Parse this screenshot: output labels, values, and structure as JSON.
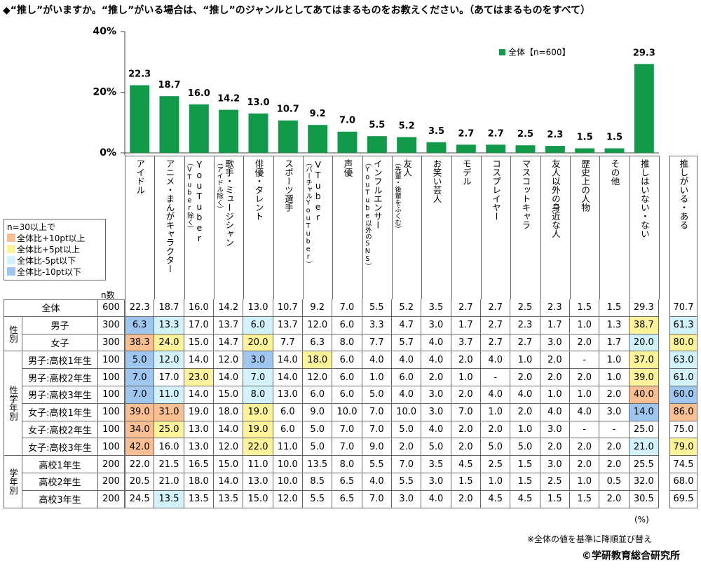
{
  "title": "◆“推し”がいますか。“推し”がいる場合は、“推し”のジャンルとしてあてはまるものをお教えください。（あてはまるものをすべて）",
  "chart_data": {
    "type": "bar",
    "categories": [
      "アイドル",
      "アニメ・まんがキャラクター",
      "YouTuber",
      "歌手・ミュージシャン",
      "俳優・タレント",
      "スポーツ選手",
      "VTuber",
      "声優",
      "インフルエンサー",
      "友人",
      "お笑い芸人",
      "モデル",
      "コスプレイヤー",
      "マスコットキャラ",
      "友人以外の身近な人",
      "歴史上の人物",
      "その他",
      "推しはいない・ない"
    ],
    "category_notes": [
      null,
      null,
      "（VTuber除く）",
      "（アイドル除く）",
      null,
      null,
      "（バーチャルYouTuber）",
      null,
      "（YouTube以外のSNS）",
      "（先輩・後輩をふくむ）",
      null,
      null,
      null,
      null,
      null,
      null,
      null,
      null
    ],
    "values": [
      22.3,
      18.7,
      16.0,
      14.2,
      13.0,
      10.7,
      9.2,
      7.0,
      5.5,
      5.2,
      3.5,
      2.7,
      2.7,
      2.5,
      2.3,
      1.5,
      1.5,
      29.3
    ],
    "value_labels": [
      "22.3",
      "18.7",
      "16.0",
      "14.2",
      "13.0",
      "10.7",
      "9.2",
      "7.0",
      "5.5",
      "5.2",
      "3.5",
      "2.7",
      "2.7",
      "2.5",
      "2.3",
      "1.5",
      "1.5",
      "29.3"
    ],
    "color": "#13994a",
    "series_name": "全体【n=600】",
    "legend_position": "top-right",
    "ylim": [
      0,
      40
    ],
    "yticks": [
      {
        "value": 0,
        "label": "0%"
      },
      {
        "value": 20,
        "label": "20%"
      },
      {
        "value": 40,
        "label": "40%"
      }
    ]
  },
  "shading_legend": {
    "title": "n=30以上で",
    "items": [
      {
        "label": "全体比+10pt以上",
        "color": "#f8bf94"
      },
      {
        "label": "全体比+5pt以上",
        "color": "#fdf39a"
      },
      {
        "label": "全体比-5pt以下",
        "color": "#d2f3fb"
      },
      {
        "label": "全体比-10pt以下",
        "color": "#9fc6ee"
      }
    ]
  },
  "table": {
    "n_header": "n数",
    "extra_column": "推しがいる・ある",
    "total": {
      "label": "全体",
      "n": "600",
      "cells": [
        "22.3",
        "18.7",
        "16.0",
        "14.2",
        "13.0",
        "10.7",
        "9.2",
        "7.0",
        "5.5",
        "5.2",
        "3.5",
        "2.7",
        "2.7",
        "2.5",
        "2.3",
        "1.5",
        "1.5",
        "29.3",
        "70.7"
      ]
    },
    "groups": [
      {
        "label": "性別",
        "rows": [
          {
            "label": "男子",
            "n": "300",
            "cells": [
              "6.3",
              "13.3",
              "17.0",
              "13.7",
              "6.0",
              "13.7",
              "12.0",
              "6.0",
              "3.3",
              "4.7",
              "3.0",
              "1.7",
              "2.7",
              "2.3",
              "1.7",
              "1.0",
              "1.3",
              "38.7",
              "61.3"
            ],
            "highlight": [
              [
                0,
                3
              ],
              [
                1,
                2
              ],
              [
                4,
                2
              ],
              [
                17,
                1
              ],
              [
                18,
                2
              ]
            ]
          },
          {
            "label": "女子",
            "n": "300",
            "cells": [
              "38.3",
              "24.0",
              "15.0",
              "14.7",
              "20.0",
              "7.7",
              "6.3",
              "8.0",
              "7.7",
              "5.7",
              "4.0",
              "3.7",
              "2.7",
              "2.7",
              "3.0",
              "2.0",
              "1.7",
              "20.0",
              "80.0"
            ],
            "highlight": [
              [
                0,
                0
              ],
              [
                1,
                1
              ],
              [
                4,
                1
              ],
              [
                17,
                2
              ],
              [
                18,
                1
              ]
            ]
          }
        ]
      },
      {
        "label": "性学年別",
        "rows": [
          {
            "label": "男子:高校1年生",
            "n": "100",
            "cells": [
              "5.0",
              "12.0",
              "14.0",
              "12.0",
              "3.0",
              "14.0",
              "18.0",
              "6.0",
              "4.0",
              "4.0",
              "4.0",
              "2.0",
              "4.0",
              "1.0",
              "2.0",
              "-",
              "1.0",
              "37.0",
              "63.0"
            ],
            "highlight": [
              [
                0,
                3
              ],
              [
                1,
                2
              ],
              [
                4,
                3
              ],
              [
                6,
                1
              ],
              [
                17,
                1
              ],
              [
                18,
                2
              ]
            ]
          },
          {
            "label": "男子:高校2年生",
            "n": "100",
            "cells": [
              "7.0",
              "17.0",
              "23.0",
              "14.0",
              "7.0",
              "14.0",
              "12.0",
              "6.0",
              "1.0",
              "6.0",
              "2.0",
              "1.0",
              "-",
              "2.0",
              "2.0",
              "2.0",
              "1.0",
              "39.0",
              "61.0"
            ],
            "highlight": [
              [
                0,
                3
              ],
              [
                2,
                1
              ],
              [
                4,
                2
              ],
              [
                17,
                1
              ],
              [
                18,
                2
              ]
            ]
          },
          {
            "label": "男子:高校3年生",
            "n": "100",
            "cells": [
              "7.0",
              "11.0",
              "14.0",
              "15.0",
              "8.0",
              "13.0",
              "6.0",
              "6.0",
              "5.0",
              "4.0",
              "3.0",
              "2.0",
              "4.0",
              "4.0",
              "1.0",
              "1.0",
              "2.0",
              "40.0",
              "60.0"
            ],
            "highlight": [
              [
                0,
                3
              ],
              [
                1,
                2
              ],
              [
                4,
                2
              ],
              [
                17,
                0
              ],
              [
                18,
                3
              ]
            ]
          },
          {
            "label": "女子:高校1年生",
            "n": "100",
            "cells": [
              "39.0",
              "31.0",
              "19.0",
              "18.0",
              "19.0",
              "6.0",
              "9.0",
              "10.0",
              "7.0",
              "10.0",
              "3.0",
              "7.0",
              "1.0",
              "2.0",
              "4.0",
              "4.0",
              "3.0",
              "14.0",
              "86.0"
            ],
            "highlight": [
              [
                0,
                0
              ],
              [
                1,
                0
              ],
              [
                4,
                1
              ],
              [
                17,
                3
              ],
              [
                18,
                0
              ]
            ]
          },
          {
            "label": "女子:高校2年生",
            "n": "100",
            "cells": [
              "34.0",
              "25.0",
              "13.0",
              "14.0",
              "19.0",
              "6.0",
              "5.0",
              "7.0",
              "7.0",
              "5.0",
              "4.0",
              "2.0",
              "2.0",
              "1.0",
              "3.0",
              "-",
              "-",
              "25.0",
              "75.0"
            ],
            "highlight": [
              [
                0,
                0
              ],
              [
                1,
                1
              ],
              [
                4,
                1
              ]
            ]
          },
          {
            "label": "女子:高校3年生",
            "n": "100",
            "cells": [
              "42.0",
              "16.0",
              "13.0",
              "12.0",
              "22.0",
              "11.0",
              "5.0",
              "7.0",
              "9.0",
              "2.0",
              "5.0",
              "2.0",
              "5.0",
              "5.0",
              "2.0",
              "2.0",
              "2.0",
              "21.0",
              "79.0"
            ],
            "highlight": [
              [
                0,
                0
              ],
              [
                4,
                1
              ],
              [
                17,
                2
              ],
              [
                18,
                1
              ]
            ]
          }
        ]
      },
      {
        "label": "学年別",
        "rows": [
          {
            "label": "高校1年生",
            "n": "200",
            "cells": [
              "22.0",
              "21.5",
              "16.5",
              "15.0",
              "11.0",
              "10.0",
              "13.5",
              "8.0",
              "5.5",
              "7.0",
              "3.5",
              "4.5",
              "2.5",
              "1.5",
              "3.0",
              "2.0",
              "2.0",
              "25.5",
              "74.5"
            ]
          },
          {
            "label": "高校2年生",
            "n": "200",
            "cells": [
              "20.5",
              "21.0",
              "18.0",
              "14.0",
              "13.0",
              "10.0",
              "8.5",
              "6.5",
              "4.0",
              "5.5",
              "3.0",
              "1.5",
              "1.0",
              "1.5",
              "2.5",
              "1.0",
              "0.5",
              "32.0",
              "68.0"
            ]
          },
          {
            "label": "高校3年生",
            "n": "200",
            "cells": [
              "24.5",
              "13.5",
              "13.5",
              "13.5",
              "15.0",
              "12.0",
              "5.5",
              "6.5",
              "7.0",
              "3.0",
              "4.0",
              "2.0",
              "4.5",
              "4.5",
              "1.5",
              "1.5",
              "2.0",
              "30.5",
              "69.5"
            ],
            "highlight": [
              [
                1,
                2
              ]
            ]
          }
        ]
      }
    ]
  },
  "unit": "(%)",
  "note": "※全体の値を基準に降順並び替え",
  "credit": "©学研教育総合研究所"
}
